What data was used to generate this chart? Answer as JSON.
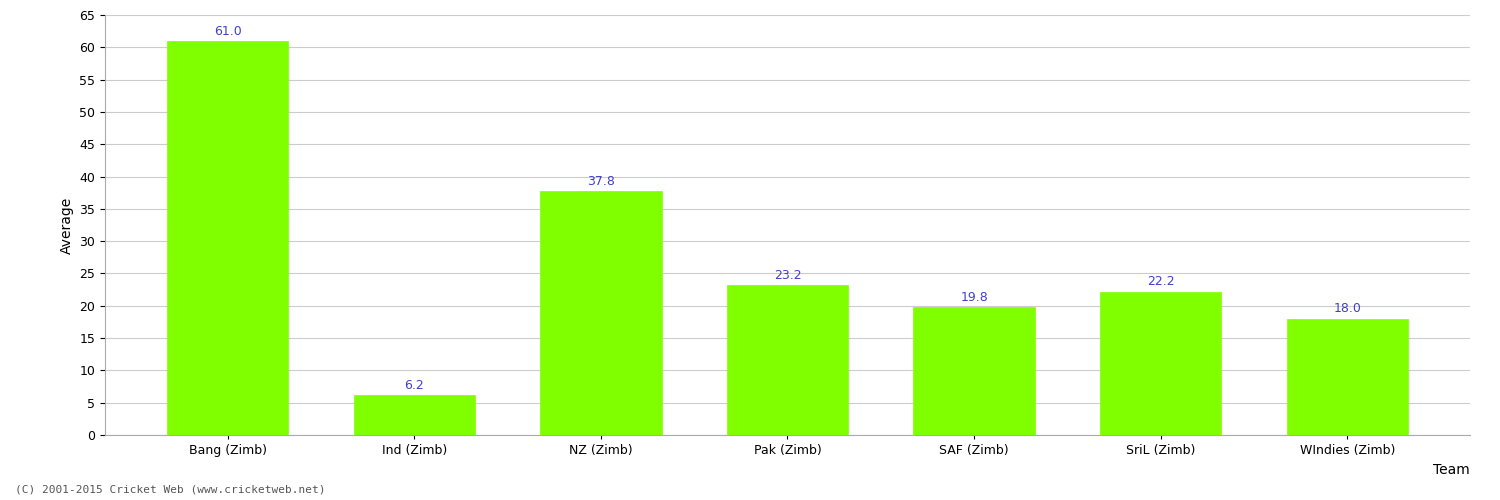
{
  "categories": [
    "Bang (Zimb)",
    "Ind (Zimb)",
    "NZ (Zimb)",
    "Pak (Zimb)",
    "SAF (Zimb)",
    "SriL (Zimb)",
    "WIndies (Zimb)"
  ],
  "values": [
    61.0,
    6.2,
    37.8,
    23.2,
    19.8,
    22.2,
    18.0
  ],
  "bar_color": "#7fff00",
  "bar_edge_color": "#7fff00",
  "value_label_color": "#4040cc",
  "xlabel": "Team",
  "ylabel": "Average",
  "ylim": [
    0,
    65
  ],
  "yticks": [
    0,
    5,
    10,
    15,
    20,
    25,
    30,
    35,
    40,
    45,
    50,
    55,
    60,
    65
  ],
  "grid_color": "#cccccc",
  "background_color": "#ffffff",
  "footer_text": "(C) 2001-2015 Cricket Web (www.cricketweb.net)",
  "label_fontsize": 10,
  "tick_fontsize": 9,
  "value_fontsize": 9,
  "bar_width": 0.65
}
